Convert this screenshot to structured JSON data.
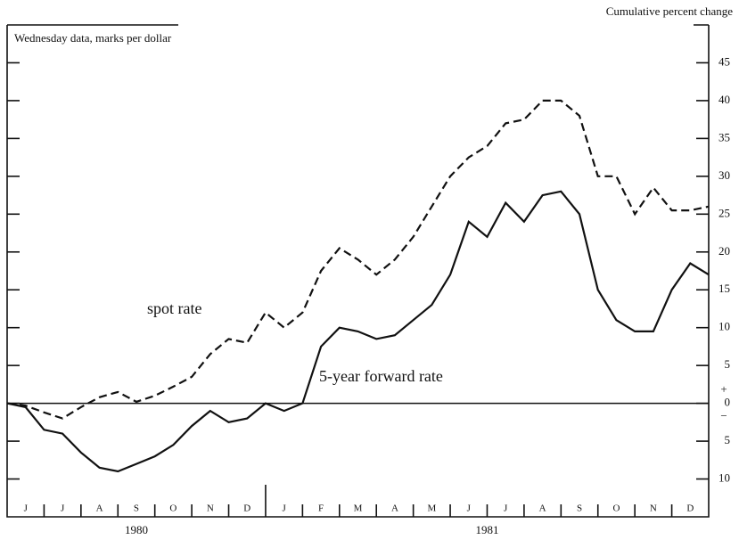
{
  "chart_data": {
    "type": "line",
    "title": "Cumulative percent change",
    "subtitle": "Wednesday data, marks per dollar",
    "months": [
      "J",
      "J",
      "A",
      "S",
      "O",
      "N",
      "D",
      "J",
      "F",
      "M",
      "A",
      "M",
      "J",
      "J",
      "A",
      "S",
      "O",
      "N",
      "D"
    ],
    "years": [
      "1980",
      "1981"
    ],
    "sign_labels": [
      "+",
      "−"
    ],
    "series": [
      {
        "name": "spot rate",
        "color": "#111",
        "dashed": true,
        "values": [
          0,
          -0.3,
          -1.2,
          -2,
          -0.5,
          0.8,
          1.5,
          0.2,
          1,
          2.2,
          3.5,
          6.5,
          8.5,
          8,
          12,
          10,
          12,
          17.5,
          20.5,
          19,
          17,
          19,
          22,
          26,
          30,
          32.5,
          34,
          37,
          37.5,
          40,
          40,
          38,
          30,
          30,
          25,
          28.5,
          25.5,
          25.5,
          26
        ]
      },
      {
        "name": "5-year forward rate",
        "color": "#111",
        "dashed": false,
        "values": [
          0,
          -0.5,
          -3.5,
          -4,
          -6.5,
          -8.5,
          -9,
          -8,
          -7,
          -5.5,
          -3,
          -1,
          -2.5,
          -2,
          0,
          -1,
          0,
          7.5,
          10,
          9.5,
          8.5,
          9,
          11,
          13,
          17,
          24,
          22,
          26.5,
          24,
          27.5,
          28,
          25,
          15,
          11,
          9.5,
          9.5,
          15,
          18.5,
          17
        ]
      }
    ],
    "ylim": [
      -15,
      50
    ],
    "yticks": [
      {
        "value": -10,
        "label": "10"
      },
      {
        "value": -5,
        "label": "5"
      },
      0,
      5,
      10,
      15,
      20,
      25,
      30,
      35,
      40,
      45
    ]
  }
}
